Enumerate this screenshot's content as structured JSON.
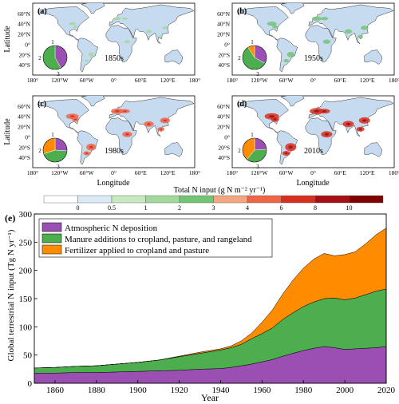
{
  "maps": {
    "ylabel": "Latitude",
    "xlabel": "Longitude",
    "lat_ticks": [
      "60°N",
      "40°N",
      "20°N",
      "0°",
      "20°S",
      "40°S"
    ],
    "lon_ticks": [
      "180°",
      "120°W",
      "60°W",
      "0°",
      "60°E",
      "120°E",
      "180°"
    ],
    "panels": [
      {
        "tag": "(a)",
        "period": "1850s",
        "pie_labels": [
          "1",
          "2",
          "3"
        ],
        "pie_shares": [
          0.42,
          0.58,
          0.0
        ]
      },
      {
        "tag": "(b)",
        "period": "1950s",
        "pie_labels": [
          "1",
          "2",
          "3"
        ],
        "pie_shares": [
          0.33,
          0.58,
          0.09
        ]
      },
      {
        "tag": "(c)",
        "period": "1980s",
        "pie_labels": [
          "1",
          "2",
          "3"
        ],
        "pie_shares": [
          0.26,
          0.44,
          0.3
        ]
      },
      {
        "tag": "(d)",
        "period": "2010s",
        "pie_labels": [
          "1",
          "2",
          "3"
        ],
        "pie_shares": [
          0.24,
          0.37,
          0.39
        ]
      }
    ]
  },
  "colorbar": {
    "title": "Total N input (g N m⁻² yr⁻¹)",
    "ticks": [
      "0",
      "0.5",
      "1",
      "2",
      "3",
      "4",
      "6",
      "8",
      "10"
    ],
    "colors": [
      "#ffffff",
      "#dbe9f6",
      "#c7e9c0",
      "#a1d99b",
      "#74c476",
      "#f4a582",
      "#ef6548",
      "#d7301f",
      "#a50f15",
      "#7f0000"
    ]
  },
  "colors": {
    "atmospheric": "#9b4fb3",
    "manure": "#4cae4c",
    "fertilizer": "#ff8c00",
    "land": "#c6dbef",
    "ocean": "#ffffff"
  },
  "chart_data": {
    "type": "area",
    "tag": "(e)",
    "xlabel": "Year",
    "ylabel": "Global terrestrial N input (Tg N yr⁻¹)",
    "xlim": [
      1850,
      2020
    ],
    "ylim": [
      0,
      300
    ],
    "xticks": [
      1860,
      1880,
      1900,
      1920,
      1940,
      1960,
      1980,
      2000,
      2020
    ],
    "yticks": [
      0,
      50,
      100,
      150,
      200,
      250,
      300
    ],
    "legend_position": "top-left",
    "stacked": true,
    "x": [
      1850,
      1860,
      1870,
      1880,
      1890,
      1900,
      1910,
      1920,
      1930,
      1940,
      1945,
      1950,
      1955,
      1960,
      1965,
      1970,
      1975,
      1980,
      1985,
      1990,
      1995,
      2000,
      2005,
      2010,
      2015,
      2020
    ],
    "series": [
      {
        "name": "Atmospheric N deposition",
        "color_key": "atmospheric",
        "values": [
          18,
          18,
          19,
          19,
          20,
          21,
          22,
          23,
          25,
          26,
          28,
          31,
          34,
          38,
          42,
          48,
          53,
          58,
          62,
          65,
          63,
          60,
          61,
          62,
          63,
          65
        ]
      },
      {
        "name": "Manure additions to cropland, pasture, and rangeland",
        "color_key": "manure",
        "values": [
          9,
          10,
          11,
          12,
          14,
          16,
          19,
          24,
          28,
          33,
          35,
          38,
          45,
          50,
          56,
          65,
          72,
          78,
          82,
          85,
          88,
          88,
          90,
          95,
          100,
          102
        ]
      },
      {
        "name": "Fertilizer applied to cropland and pasture",
        "color_key": "fertilizer",
        "values": [
          0,
          0,
          0,
          0,
          0,
          0,
          0,
          1,
          2,
          2,
          3,
          6,
          10,
          20,
          32,
          45,
          58,
          68,
          76,
          80,
          75,
          80,
          82,
          90,
          100,
          108
        ]
      }
    ]
  }
}
